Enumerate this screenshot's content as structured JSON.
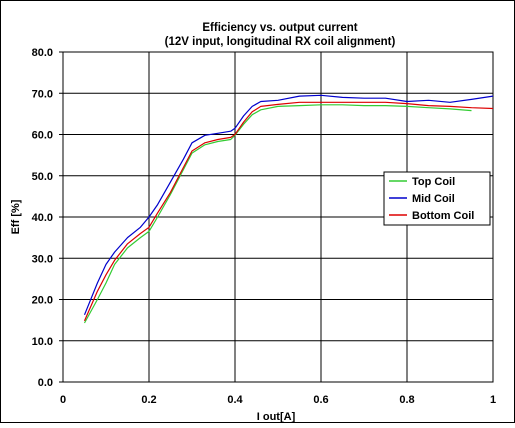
{
  "chart_data": {
    "type": "line",
    "title": "Efficiency vs. output current",
    "subtitle": "(12V input, longitudinal RX coil alignment)",
    "xlabel": "I out[A]",
    "ylabel": "Eff [%]",
    "xlim": [
      0,
      1
    ],
    "ylim": [
      0,
      80
    ],
    "x_ticks": [
      0,
      0.2,
      0.4,
      0.6,
      0.8,
      1
    ],
    "x_tick_labels": [
      "0",
      "0.2",
      "0.4",
      "0.6",
      "0.8",
      "1"
    ],
    "y_ticks": [
      0,
      10,
      20,
      30,
      40,
      50,
      60,
      70,
      80
    ],
    "y_tick_labels": [
      "0.0",
      "10.0",
      "20.0",
      "30.0",
      "40.0",
      "50.0",
      "60.0",
      "70.0",
      "80.0"
    ],
    "grid": true,
    "legend_position": "right",
    "series": [
      {
        "name": "Top Coil",
        "color": "#33cc33",
        "x": [
          0.05,
          0.08,
          0.1,
          0.12,
          0.15,
          0.18,
          0.2,
          0.22,
          0.25,
          0.28,
          0.3,
          0.33,
          0.36,
          0.39,
          0.4,
          0.42,
          0.44,
          0.46,
          0.5,
          0.55,
          0.6,
          0.65,
          0.7,
          0.75,
          0.8,
          0.85,
          0.9,
          0.95
        ],
        "y": [
          14.3,
          20.0,
          24.0,
          28.5,
          32.5,
          35.0,
          36.5,
          40.0,
          45.5,
          51.5,
          55.5,
          57.5,
          58.3,
          58.8,
          59.8,
          62.5,
          64.8,
          66.0,
          66.8,
          67.0,
          67.2,
          67.2,
          67.0,
          67.0,
          66.8,
          66.5,
          66.2,
          65.8
        ]
      },
      {
        "name": "Mid Coil",
        "color": "#0000cc",
        "x": [
          0.05,
          0.08,
          0.1,
          0.12,
          0.15,
          0.18,
          0.2,
          0.22,
          0.25,
          0.28,
          0.3,
          0.33,
          0.36,
          0.39,
          0.4,
          0.42,
          0.44,
          0.46,
          0.5,
          0.55,
          0.6,
          0.65,
          0.7,
          0.75,
          0.8,
          0.85,
          0.9,
          0.95,
          1.0
        ],
        "y": [
          16.3,
          24.0,
          28.5,
          31.5,
          35.0,
          37.5,
          40.0,
          43.0,
          48.5,
          54.0,
          58.0,
          59.8,
          60.3,
          60.8,
          61.5,
          64.5,
          66.8,
          68.0,
          68.3,
          69.3,
          69.5,
          69.0,
          68.8,
          68.8,
          68.0,
          68.3,
          67.8,
          68.5,
          69.3
        ]
      },
      {
        "name": "Bottom Coil",
        "color": "#dd0000",
        "x": [
          0.05,
          0.08,
          0.1,
          0.12,
          0.15,
          0.18,
          0.2,
          0.22,
          0.25,
          0.28,
          0.3,
          0.33,
          0.36,
          0.39,
          0.4,
          0.42,
          0.44,
          0.46,
          0.5,
          0.55,
          0.6,
          0.65,
          0.7,
          0.75,
          0.8,
          0.85,
          0.9,
          0.95,
          1.0
        ],
        "y": [
          14.8,
          22.0,
          26.0,
          29.5,
          33.5,
          36.0,
          37.5,
          41.0,
          46.0,
          52.0,
          56.0,
          58.0,
          58.8,
          59.3,
          60.0,
          63.0,
          65.5,
          66.8,
          67.3,
          67.8,
          67.8,
          67.8,
          67.8,
          67.8,
          67.5,
          67.0,
          66.8,
          66.5,
          66.3
        ]
      }
    ]
  }
}
